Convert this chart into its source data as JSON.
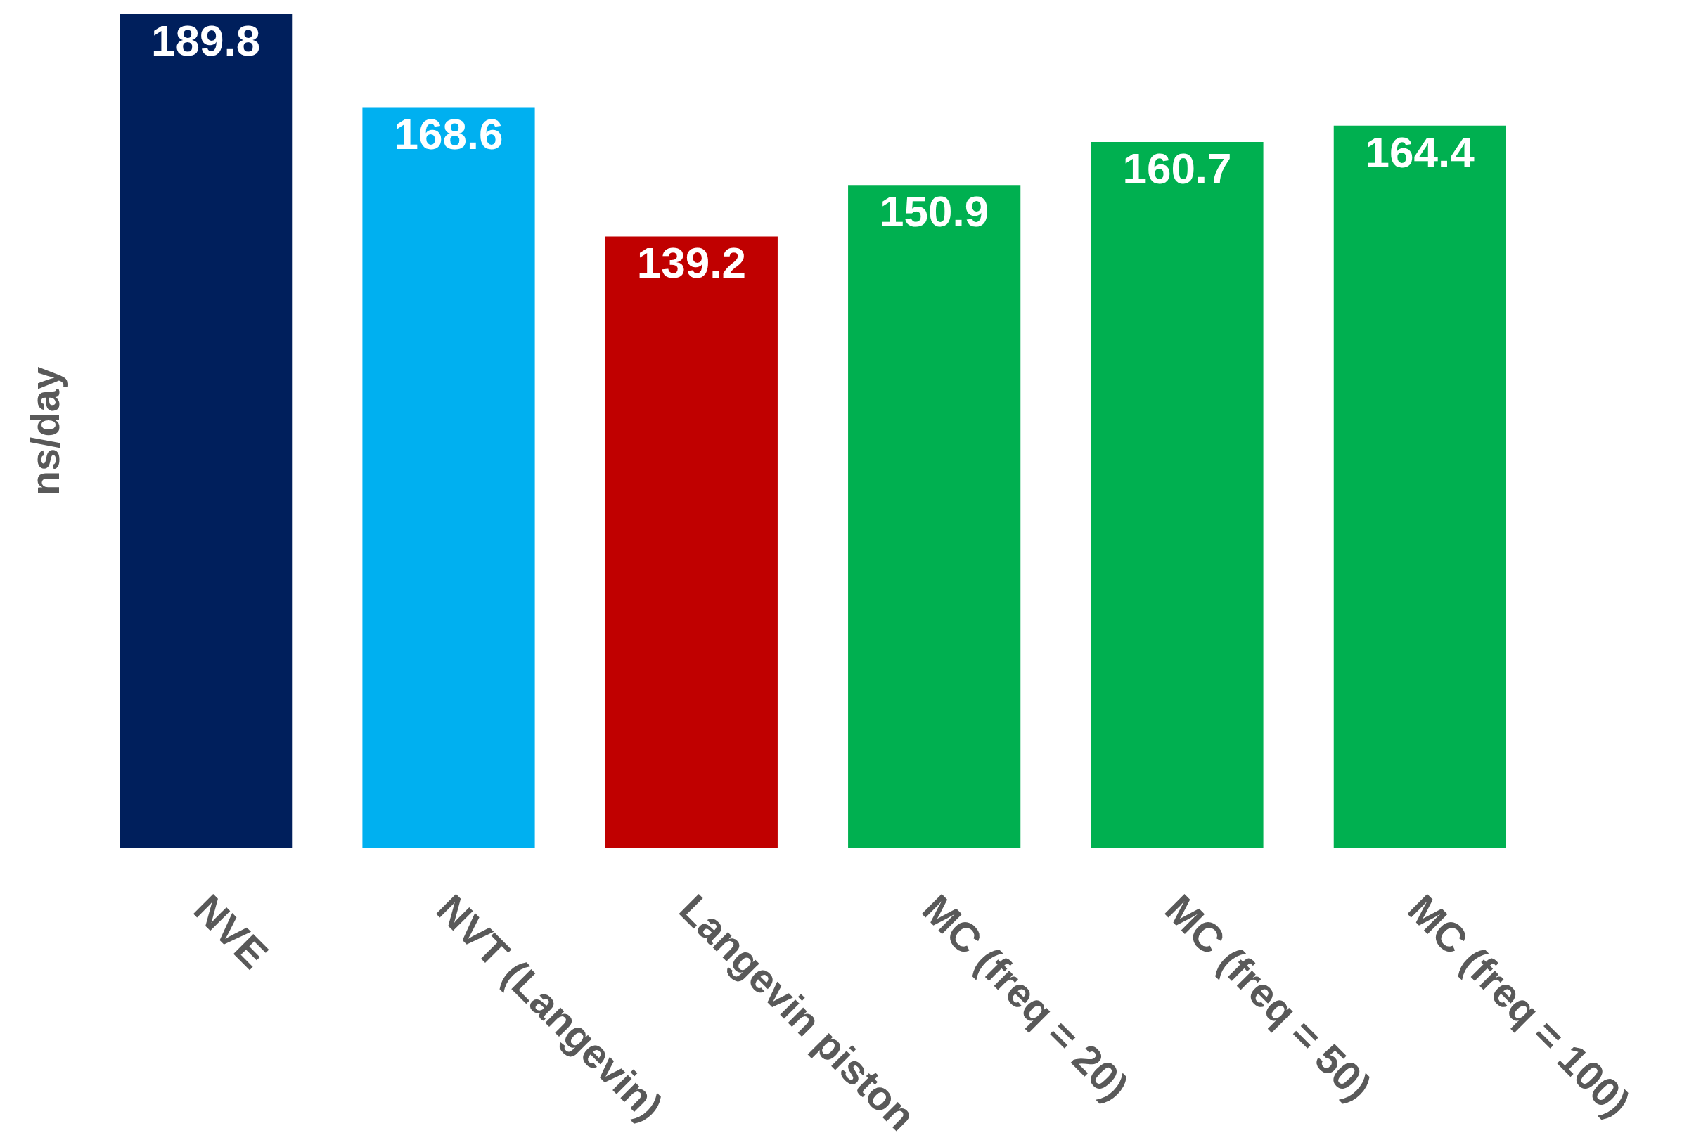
{
  "chart_data": {
    "type": "bar",
    "ylabel": "ns/day",
    "categories": [
      "NVE",
      "NVT (Langevin)",
      "Langevin piston",
      "MC (freq = 20)",
      "MC (freq = 50)",
      "MC (freq = 100)"
    ],
    "values": [
      189.8,
      168.6,
      139.2,
      150.9,
      160.7,
      164.4
    ],
    "colors": [
      "#001f5c",
      "#00b0f0",
      "#c00000",
      "#00b050",
      "#00b050",
      "#00b050"
    ],
    "data_labels": true
  }
}
